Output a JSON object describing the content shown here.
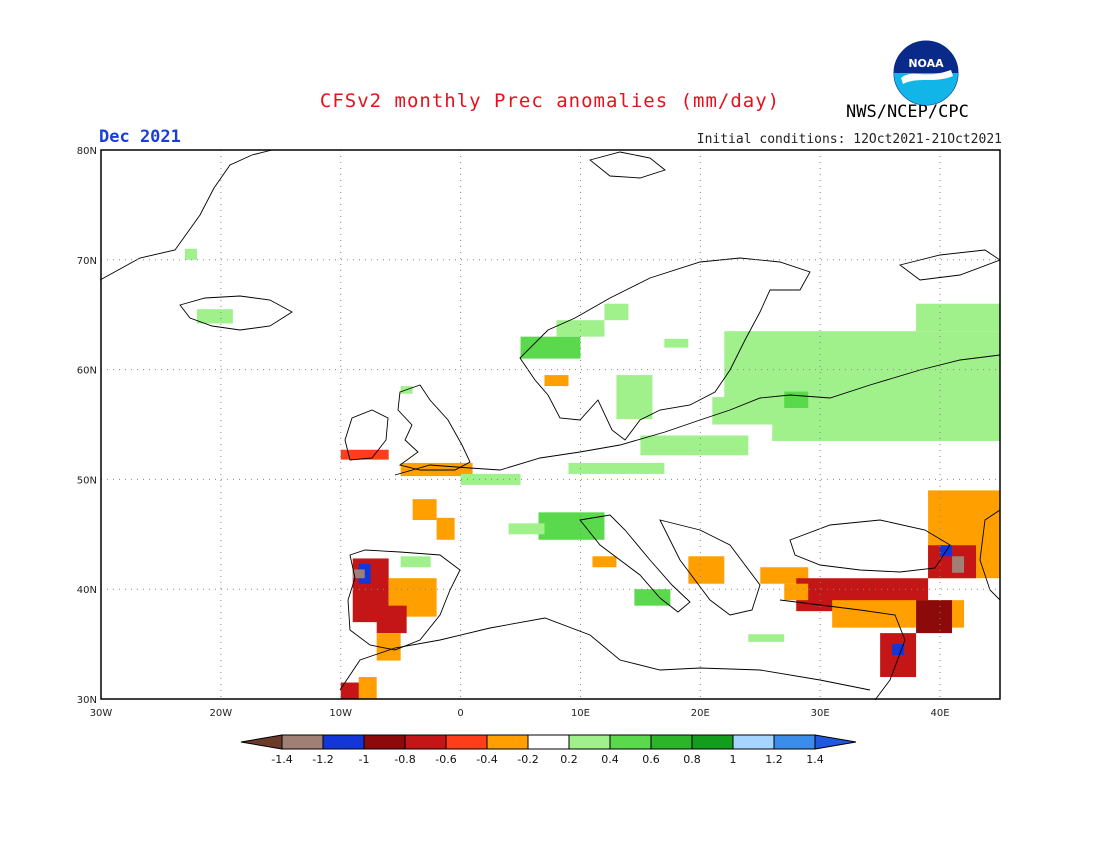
{
  "header": {
    "title": "CFSv2 monthly Prec anomalies (mm/day)",
    "month": "Dec 2021",
    "initial_conditions": "Initial conditions: 12Oct2021-21Oct2021",
    "organization": "NWS/NCEP/CPC",
    "logo_text": "NOAA"
  },
  "map": {
    "region": "Europe",
    "lon_range": [
      -30,
      45
    ],
    "lat_range": [
      30,
      80
    ],
    "x_ticks": [
      "30W",
      "20W",
      "10W",
      "0",
      "10E",
      "20E",
      "30E",
      "40E"
    ],
    "y_ticks": [
      "30N",
      "40N",
      "50N",
      "60N",
      "70N",
      "80N"
    ],
    "grid": "dotted"
  },
  "legend": {
    "labels": [
      "-1.4",
      "-1.2",
      "-1",
      "-0.8",
      "-0.6",
      "-0.4",
      "-0.2",
      "0.2",
      "0.4",
      "0.6",
      "0.8",
      "1",
      "1.2",
      "1.4"
    ],
    "colors": [
      "#6b3a2a",
      "#a07f74",
      "#1236d8",
      "#8c0a0a",
      "#c41616",
      "#ff3d1a",
      "#ff9f00",
      "#ffffff",
      "#a0f08c",
      "#5ad94c",
      "#2db52a",
      "#149c1c",
      "#a6d6ff",
      "#3c8dea",
      "#2058e0"
    ]
  },
  "anomalies": [
    {
      "name": "iceland",
      "lon": [
        -22,
        -19
      ],
      "lat": [
        64.2,
        65.5
      ],
      "color": "#a0f08c"
    },
    {
      "name": "greenland-e",
      "lon": [
        -23,
        -22
      ],
      "lat": [
        70,
        71
      ],
      "color": "#a0f08c"
    },
    {
      "name": "norway-coast-1",
      "lon": [
        5,
        10
      ],
      "lat": [
        61,
        63
      ],
      "color": "#5ad94c"
    },
    {
      "name": "norway-coast-2",
      "lon": [
        8,
        12
      ],
      "lat": [
        63,
        64.5
      ],
      "color": "#a0f08c"
    },
    {
      "name": "norway-coast-3",
      "lon": [
        12,
        14
      ],
      "lat": [
        64.5,
        66
      ],
      "color": "#a0f08c"
    },
    {
      "name": "sw-norway",
      "lon": [
        7,
        9
      ],
      "lat": [
        58.5,
        59.5
      ],
      "color": "#ff9f00"
    },
    {
      "name": "scotland",
      "lon": [
        -5,
        -4
      ],
      "lat": [
        57.8,
        58.5
      ],
      "color": "#a0f08c"
    },
    {
      "name": "ireland-sw",
      "lon": [
        -10,
        -6
      ],
      "lat": [
        51.8,
        52.7
      ],
      "color": "#ff3d1a"
    },
    {
      "name": "channel",
      "lon": [
        -5,
        1
      ],
      "lat": [
        50.3,
        51.5
      ],
      "color": "#ff9f00"
    },
    {
      "name": "brittany",
      "lon": [
        -4,
        -2
      ],
      "lat": [
        46.3,
        48.2
      ],
      "color": "#ff9f00"
    },
    {
      "name": "biscay",
      "lon": [
        -2,
        -0.5
      ],
      "lat": [
        44.5,
        46.5
      ],
      "color": "#ff9f00"
    },
    {
      "name": "benelux-green",
      "lon": [
        0,
        5
      ],
      "lat": [
        49.5,
        50.5
      ],
      "color": "#a0f08c"
    },
    {
      "name": "central-eu-green",
      "lon": [
        9,
        17
      ],
      "lat": [
        50.5,
        51.5
      ],
      "color": "#a0f08c"
    },
    {
      "name": "alps-green-1",
      "lon": [
        6.5,
        12
      ],
      "lat": [
        44.5,
        47
      ],
      "color": "#5ad94c"
    },
    {
      "name": "alps-green-2",
      "lon": [
        4,
        7
      ],
      "lat": [
        45,
        46
      ],
      "color": "#a0f08c"
    },
    {
      "name": "poland-green",
      "lon": [
        15,
        24
      ],
      "lat": [
        52.2,
        54
      ],
      "color": "#a0f08c"
    },
    {
      "name": "baltic-green",
      "lon": [
        21,
        30
      ],
      "lat": [
        55,
        57.5
      ],
      "color": "#a0f08c"
    },
    {
      "name": "sweden-green",
      "lon": [
        13,
        16
      ],
      "lat": [
        55.5,
        59.5
      ],
      "color": "#a0f08c"
    },
    {
      "name": "finland-green",
      "lon": [
        17,
        19
      ],
      "lat": [
        62,
        62.8
      ],
      "color": "#a0f08c"
    },
    {
      "name": "russia-green-1",
      "lon": [
        22,
        45
      ],
      "lat": [
        57.5,
        63.5
      ],
      "color": "#a0f08c"
    },
    {
      "name": "russia-green-2",
      "lon": [
        26,
        45
      ],
      "lat": [
        53.5,
        57.5
      ],
      "color": "#a0f08c"
    },
    {
      "name": "russia-green-3",
      "lon": [
        38,
        45
      ],
      "lat": [
        63.5,
        66
      ],
      "color": "#a0f08c"
    },
    {
      "name": "baltic-darkgreen",
      "lon": [
        27,
        29
      ],
      "lat": [
        56.5,
        58
      ],
      "color": "#5ad94c"
    },
    {
      "name": "iberia-nw-red",
      "lon": [
        -9,
        -6
      ],
      "lat": [
        37,
        42.8
      ],
      "color": "#c41616"
    },
    {
      "name": "iberia-nw-blue",
      "lon": [
        -8.5,
        -7.5
      ],
      "lat": [
        40.5,
        42.3
      ],
      "color": "#1236d8"
    },
    {
      "name": "iberia-brown",
      "lon": [
        -9,
        -8
      ],
      "lat": [
        41,
        41.8
      ],
      "color": "#a07f74"
    },
    {
      "name": "iberia-orange",
      "lon": [
        -6,
        -2
      ],
      "lat": [
        37.5,
        41
      ],
      "color": "#ff9f00"
    },
    {
      "name": "iberia-red-2",
      "lon": [
        -7,
        -4.5
      ],
      "lat": [
        36,
        38.5
      ],
      "color": "#c41616"
    },
    {
      "name": "morocco-orange",
      "lon": [
        -7,
        -5
      ],
      "lat": [
        33.5,
        36
      ],
      "color": "#ff9f00"
    },
    {
      "name": "morocco-red",
      "lon": [
        -10,
        -8
      ],
      "lat": [
        30,
        31.5
      ],
      "color": "#c41616"
    },
    {
      "name": "morocco-orange-2",
      "lon": [
        -8.5,
        -7
      ],
      "lat": [
        30,
        32
      ],
      "color": "#ff9f00"
    },
    {
      "name": "iberia-green",
      "lon": [
        -5,
        -2.5
      ],
      "lat": [
        42,
        43
      ],
      "color": "#a0f08c"
    },
    {
      "name": "italy-orange",
      "lon": [
        11,
        13
      ],
      "lat": [
        42,
        43
      ],
      "color": "#ff9f00"
    },
    {
      "name": "balkans-orange-1",
      "lon": [
        19,
        22
      ],
      "lat": [
        40.5,
        43
      ],
      "color": "#ff9f00"
    },
    {
      "name": "balkans-orange-2",
      "lon": [
        25,
        29
      ],
      "lat": [
        40.5,
        42
      ],
      "color": "#ff9f00"
    },
    {
      "name": "sicily-green",
      "lon": [
        14.5,
        17.5
      ],
      "lat": [
        38.5,
        40
      ],
      "color": "#5ad94c"
    },
    {
      "name": "turkey-red",
      "lon": [
        28,
        39
      ],
      "lat": [
        38,
        41
      ],
      "color": "#c41616"
    },
    {
      "name": "turkey-orange",
      "lon": [
        31,
        42
      ],
      "lat": [
        36.5,
        39
      ],
      "color": "#ff9f00"
    },
    {
      "name": "turkey-darkred",
      "lon": [
        38,
        41
      ],
      "lat": [
        36,
        39
      ],
      "color": "#8c0a0a"
    },
    {
      "name": "levant-red",
      "lon": [
        35,
        38
      ],
      "lat": [
        32,
        36
      ],
      "color": "#c41616"
    },
    {
      "name": "levant-blue",
      "lon": [
        36,
        37
      ],
      "lat": [
        34,
        35
      ],
      "color": "#1236d8"
    },
    {
      "name": "caucasus-orange",
      "lon": [
        39,
        45
      ],
      "lat": [
        41,
        49
      ],
      "color": "#ff9f00"
    },
    {
      "name": "caucasus-red",
      "lon": [
        39,
        43
      ],
      "lat": [
        41,
        44
      ],
      "color": "#c41616"
    },
    {
      "name": "caucasus-brown",
      "lon": [
        41,
        42
      ],
      "lat": [
        41.5,
        43
      ],
      "color": "#a07f74"
    },
    {
      "name": "caucasus-blue",
      "lon": [
        40,
        41
      ],
      "lat": [
        43,
        44
      ],
      "color": "#1236d8"
    },
    {
      "name": "crete-green",
      "lon": [
        24,
        27
      ],
      "lat": [
        35.2,
        35.9
      ],
      "color": "#a0f08c"
    },
    {
      "name": "aegean-orange",
      "lon": [
        27,
        29
      ],
      "lat": [
        39,
        40.5
      ],
      "color": "#ff9f00"
    }
  ]
}
